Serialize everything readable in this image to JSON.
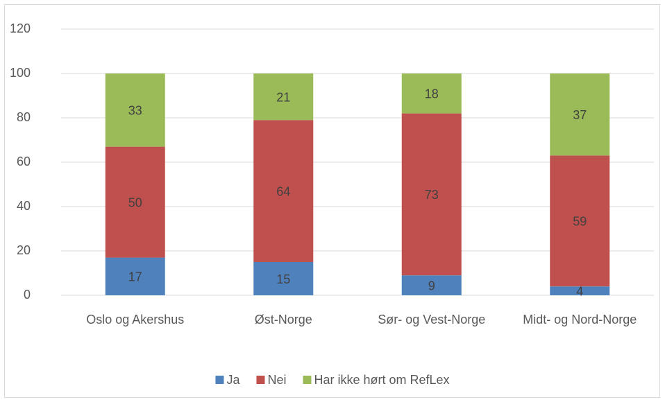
{
  "chart_data": {
    "type": "stacked_bar",
    "categories": [
      "Oslo og Akershus",
      "Øst-Norge",
      "Sør- og Vest-Norge",
      "Midt- og Nord-Norge"
    ],
    "series": [
      {
        "name": "Ja",
        "color": "#4f81bd",
        "values": [
          17,
          15,
          9,
          4
        ]
      },
      {
        "name": "Nei",
        "color": "#c0504d",
        "values": [
          50,
          64,
          73,
          59
        ]
      },
      {
        "name": "Har ikke hørt om RefLex",
        "color": "#9bbb59",
        "values": [
          33,
          21,
          18,
          37
        ]
      }
    ],
    "ylim": [
      0,
      120
    ],
    "yticks": [
      0,
      20,
      40,
      60,
      80,
      100,
      120
    ],
    "grid": true,
    "legend": "bottom"
  }
}
